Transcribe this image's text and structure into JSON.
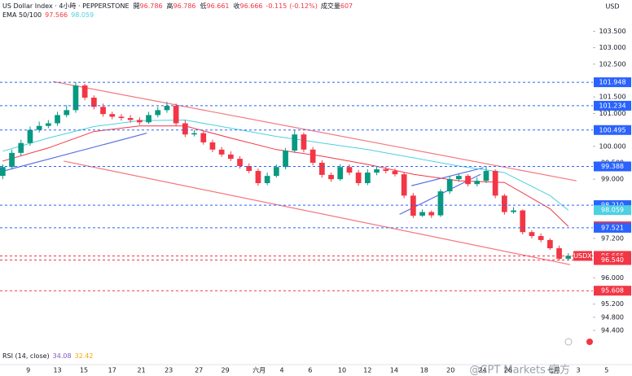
{
  "chart_data": {
    "type": "candlestick",
    "header": {
      "symbol": "US Dollar Index · 4小時 · PEPPERSTONE",
      "fields": [
        {
          "label": "開",
          "value": 96.786
        },
        {
          "label": "高",
          "value": 96.786
        },
        {
          "label": "低",
          "value": 96.661
        },
        {
          "label": "收",
          "value": 96.666
        }
      ],
      "change": -0.115,
      "change_pct": "(-0.12%)",
      "volume_label": "成交量",
      "volume": 607
    },
    "indicator_label": "EMA 50/100",
    "rsi": {
      "label": "RSI (14, close)",
      "values": [
        34.08,
        32.42
      ],
      "colors": [
        "#7e57c2",
        "#f7a600"
      ]
    },
    "currency": "USD",
    "watermark": "@CPT Markets 官方",
    "up_color": "#089981",
    "down_color": "#f23645",
    "xlim": [
      -0.3,
      64.7
    ],
    "ylim": [
      93.36,
      104.45
    ],
    "xticks": [
      {
        "value": 2.8,
        "label": "9"
      },
      {
        "value": 6.0,
        "label": "13"
      },
      {
        "value": 8.9,
        "label": "15"
      },
      {
        "value": 12.0,
        "label": "17"
      },
      {
        "value": 15.2,
        "label": "21"
      },
      {
        "value": 18.2,
        "label": "23"
      },
      {
        "value": 21.5,
        "label": "27"
      },
      {
        "value": 24.4,
        "label": "29"
      },
      {
        "value": 28.1,
        "label": "六月"
      },
      {
        "value": 30.6,
        "label": "4"
      },
      {
        "value": 33.7,
        "label": "6"
      },
      {
        "value": 37.2,
        "label": "10"
      },
      {
        "value": 40.0,
        "label": "12"
      },
      {
        "value": 42.9,
        "label": "14"
      },
      {
        "value": 46.2,
        "label": "18"
      },
      {
        "value": 49.1,
        "label": "20"
      },
      {
        "value": 52.6,
        "label": "24"
      },
      {
        "value": 55.4,
        "label": "26"
      },
      {
        "value": 60.4,
        "label": "七月"
      },
      {
        "value": 63.1,
        "label": "3"
      },
      {
        "value": 66.2,
        "label": "5"
      }
    ],
    "yticks": [
      {
        "value": 103.5,
        "label": "103.500"
      },
      {
        "value": 103.0,
        "label": "103.000"
      },
      {
        "value": 102.5,
        "label": "102.500"
      },
      {
        "value": 101.5,
        "label": "101.500"
      },
      {
        "value": 101.0,
        "label": "101.000"
      },
      {
        "value": 100.0,
        "label": "100.000"
      },
      {
        "value": 99.5,
        "label": "99.500"
      },
      {
        "value": 99.0,
        "label": "99.000"
      },
      {
        "value": 97.2,
        "label": "97.200"
      },
      {
        "value": 96.0,
        "label": "96.000"
      },
      {
        "value": 95.2,
        "label": "95.200"
      },
      {
        "value": 94.8,
        "label": "94.800"
      },
      {
        "value": 94.4,
        "label": "94.400"
      }
    ],
    "open": [
      99.1,
      99.37,
      99.8,
      100.1,
      100.5,
      100.62,
      100.7,
      100.95,
      101.1,
      101.85,
      101.48,
      101.2,
      100.98,
      100.9,
      100.86,
      100.8,
      100.73,
      100.95,
      101.1,
      101.23,
      100.7,
      100.36,
      100.4,
      100.12,
      99.9,
      99.75,
      99.62,
      99.4,
      99.25,
      98.88,
      99.1,
      99.37,
      99.87,
      100.36,
      99.9,
      99.5,
      99.13,
      99.0,
      99.37,
      99.2,
      98.88,
      99.2,
      99.3,
      99.25,
      99.15,
      98.5,
      97.89,
      98.0,
      97.9,
      98.63,
      99.0,
      99.1,
      98.85,
      98.95,
      99.25,
      98.5,
      98.0,
      98.05,
      97.39,
      97.27,
      97.15,
      96.9,
      96.58
    ],
    "high": [
      99.45,
      99.9,
      100.2,
      100.6,
      100.75,
      100.8,
      101.05,
      101.25,
      101.95,
      101.9,
      101.55,
      101.3,
      101.05,
      100.98,
      100.95,
      100.88,
      101.05,
      101.2,
      101.35,
      101.3,
      100.8,
      100.5,
      100.48,
      100.2,
      99.98,
      99.85,
      99.7,
      99.48,
      99.32,
      99.2,
      99.45,
      99.95,
      100.5,
      100.42,
      99.98,
      99.58,
      99.2,
      99.45,
      99.45,
      99.28,
      99.3,
      99.4,
      99.38,
      99.32,
      99.2,
      98.58,
      98.08,
      98.05,
      98.7,
      99.1,
      99.18,
      99.15,
      99.05,
      99.4,
      99.3,
      98.55,
      98.15,
      98.08,
      97.45,
      97.35,
      97.2,
      96.98,
      96.75
    ],
    "low": [
      99.0,
      99.3,
      99.72,
      100.02,
      100.42,
      100.55,
      100.62,
      100.88,
      101.02,
      101.4,
      101.12,
      100.9,
      100.82,
      100.78,
      100.72,
      100.65,
      100.68,
      100.88,
      101.02,
      100.62,
      100.28,
      100.3,
      100.05,
      99.82,
      99.68,
      99.55,
      99.32,
      99.18,
      98.8,
      98.82,
      99.05,
      99.3,
      99.8,
      99.82,
      99.42,
      99.05,
      98.92,
      98.95,
      99.12,
      98.8,
      98.82,
      99.12,
      99.18,
      99.08,
      98.42,
      97.82,
      97.85,
      97.82,
      97.85,
      98.55,
      98.92,
      98.78,
      98.78,
      98.88,
      98.42,
      97.92,
      97.95,
      97.32,
      97.2,
      97.08,
      96.85,
      96.52,
      96.55
    ],
    "close": [
      99.37,
      99.8,
      100.1,
      100.5,
      100.62,
      100.7,
      100.95,
      101.1,
      101.85,
      101.48,
      101.2,
      100.98,
      100.9,
      100.86,
      100.8,
      100.73,
      100.95,
      101.1,
      101.23,
      100.7,
      100.36,
      100.4,
      100.12,
      99.9,
      99.75,
      99.62,
      99.4,
      99.25,
      98.88,
      99.1,
      99.37,
      99.87,
      100.36,
      99.9,
      99.5,
      99.13,
      99.0,
      99.37,
      99.2,
      98.88,
      99.2,
      99.3,
      99.25,
      99.15,
      98.5,
      97.89,
      98.0,
      97.9,
      98.63,
      99.0,
      99.1,
      98.85,
      98.95,
      99.25,
      98.5,
      98.0,
      98.05,
      97.39,
      97.27,
      97.15,
      96.9,
      96.58,
      96.67
    ],
    "series": [
      {
        "color": "#f23645",
        "x": [
          0,
          5,
          10,
          15,
          20,
          25,
          30,
          35,
          40,
          45,
          50,
          55,
          60,
          62
        ],
        "values": [
          99.55,
          99.95,
          100.45,
          100.62,
          100.62,
          100.25,
          99.9,
          99.7,
          99.45,
          99.15,
          98.95,
          98.9,
          98.1,
          97.566
        ]
      },
      {
        "color": "#4dd0e1",
        "x": [
          0,
          5,
          10,
          15,
          20,
          25,
          30,
          35,
          40,
          45,
          50,
          55,
          60,
          62
        ],
        "values": [
          99.85,
          100.25,
          100.6,
          100.78,
          100.8,
          100.55,
          100.3,
          100.1,
          99.9,
          99.65,
          99.4,
          99.2,
          98.5,
          98.059
        ]
      }
    ],
    "trendlines": [
      {
        "color": "#f4777f",
        "x": [
          5.5,
          62.9
        ],
        "y": [
          101.97,
          98.95
        ]
      },
      {
        "color": "#f4777f",
        "x": [
          6.7,
          62.2
        ],
        "y": [
          99.55,
          96.4
        ]
      },
      {
        "color": "#5b6ee1",
        "x": [
          -0.3,
          15.8
        ],
        "y": [
          99.22,
          100.4
        ]
      },
      {
        "color": "#5b6ee1",
        "x": [
          43.5,
          52.4
        ],
        "y": [
          97.93,
          99.15
        ]
      },
      {
        "color": "#5b6ee1",
        "x": [
          44.8,
          52.7
        ],
        "y": [
          98.8,
          99.35
        ]
      }
    ],
    "levels": [
      {
        "value": 101.948,
        "label": "101.948",
        "color": "#2962ff",
        "dashed": true
      },
      {
        "value": 101.234,
        "label": "101.234",
        "color": "#2962ff",
        "dashed": true
      },
      {
        "value": 100.495,
        "label": "100.495",
        "color": "#2962ff",
        "dashed": true
      },
      {
        "value": 99.388,
        "label": "99.388",
        "color": "#2962ff",
        "dashed": true
      },
      {
        "value": 98.21,
        "label": "98.210",
        "color": "#2962ff",
        "dashed": true
      },
      {
        "value": 98.059,
        "label": "98.059",
        "color": "#4dd0e1",
        "dashed": false
      },
      {
        "value": 97.566,
        "label": "97.566",
        "color": "#f23645",
        "dashed": false
      },
      {
        "value": 97.521,
        "label": "97.521",
        "color": "#2962ff",
        "dashed": true
      },
      {
        "value": 96.666,
        "label": "96.666",
        "color": "#f23645",
        "dashed": true,
        "tag": "USDX"
      },
      {
        "value": 96.54,
        "label": "96.540",
        "color": "#f23645",
        "dashed": true
      },
      {
        "value": 95.608,
        "label": "95.608",
        "color": "#f23645",
        "dashed": true
      }
    ]
  }
}
